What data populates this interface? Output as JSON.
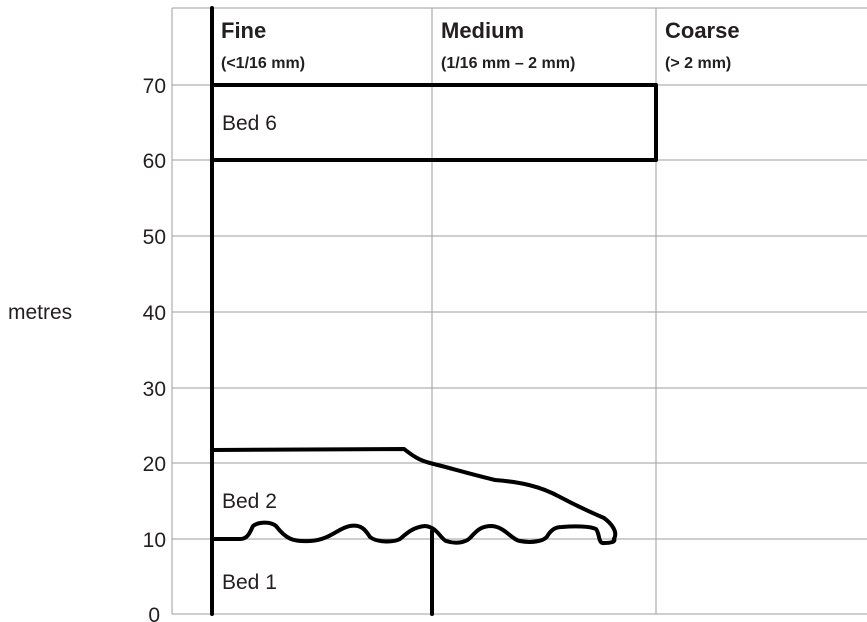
{
  "y_axis": {
    "label": "metres",
    "ticks": [
      "70",
      "60",
      "50",
      "40",
      "30",
      "20",
      "10",
      "0"
    ]
  },
  "columns": [
    {
      "name": "Fine",
      "range": "(<1/16 mm)"
    },
    {
      "name": "Medium",
      "range": "(1/16 mm – 2 mm)"
    },
    {
      "name": "Coarse",
      "range": "(> 2 mm)"
    }
  ],
  "beds": {
    "bed6": "Bed 6",
    "bed2": "Bed 2",
    "bed1": "Bed 1"
  },
  "colors": {
    "line": "#000000",
    "grid": "#9d9d9d",
    "text": "#231f20"
  }
}
